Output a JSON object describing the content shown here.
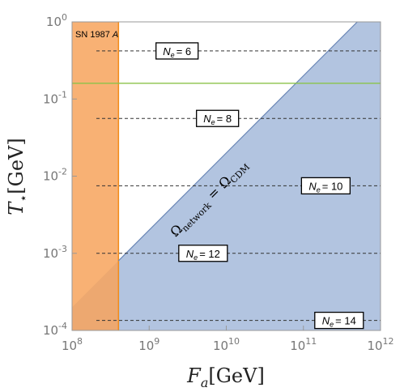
{
  "chart_data": {
    "type": "area",
    "x_axis": {
      "title_main": "F",
      "title_sub": "a",
      "title_unit": "[GeV]",
      "scale": "log10",
      "range": [
        100000000.0,
        1000000000000.0
      ],
      "ticks": [
        {
          "value": 100000000.0,
          "base": "10",
          "exp": "8"
        },
        {
          "value": 1000000000.0,
          "base": "10",
          "exp": "9"
        },
        {
          "value": 10000000000.0,
          "base": "10",
          "exp": "10"
        },
        {
          "value": 100000000000.0,
          "base": "10",
          "exp": "11"
        },
        {
          "value": 1000000000000.0,
          "base": "10",
          "exp": "12"
        }
      ]
    },
    "y_axis": {
      "title_main": "T",
      "title_sub": "⋆",
      "title_unit": "[GeV]",
      "scale": "log10",
      "range": [
        0.0001,
        1
      ],
      "ticks": [
        {
          "value": 0.0001,
          "base": "10",
          "exp": "-4"
        },
        {
          "value": 0.001,
          "base": "10",
          "exp": "-3"
        },
        {
          "value": 0.01,
          "base": "10",
          "exp": "-2"
        },
        {
          "value": 0.1,
          "base": "10",
          "exp": "-1"
        },
        {
          "value": 1,
          "base": "10",
          "exp": "0"
        }
      ]
    },
    "sn_band": {
      "label": "SN 1987",
      "label_italic": "A",
      "x_range": [
        100000000.0,
        400000000.0
      ],
      "color": "#f7a35c",
      "edge_color": "#f28c1a"
    },
    "network_region": {
      "color": "#7f9ccc",
      "boundary_points": [
        [
          100000000.0,
          0.0002
        ],
        [
          400000000.0,
          0.0008
        ],
        [
          500000000000.0,
          1
        ]
      ],
      "label_main": "Ω",
      "label_sub_left": "network",
      "label_eq": "=",
      "label_sub_right": "CDM"
    },
    "green_line": {
      "y": 0.16,
      "color": "#8bc34a"
    },
    "ne_lines": [
      {
        "y": 0.42,
        "label": "N",
        "sub": "e",
        "value": "= 6",
        "label_x": 2300000000.0
      },
      {
        "y": 0.056,
        "label": "N",
        "sub": "e",
        "value": "= 8",
        "label_x": 7700000000.0
      },
      {
        "y": 0.0075,
        "label": "N",
        "sub": "e",
        "value": "= 10",
        "label_x": 195000000000.0
      },
      {
        "y": 0.001,
        "label": "N",
        "sub": "e",
        "value": "= 12",
        "label_x": 5000000000.0
      },
      {
        "y": 0.000135,
        "label": "N",
        "sub": "e",
        "value": "= 14",
        "label_x": 290000000000.0
      }
    ]
  }
}
